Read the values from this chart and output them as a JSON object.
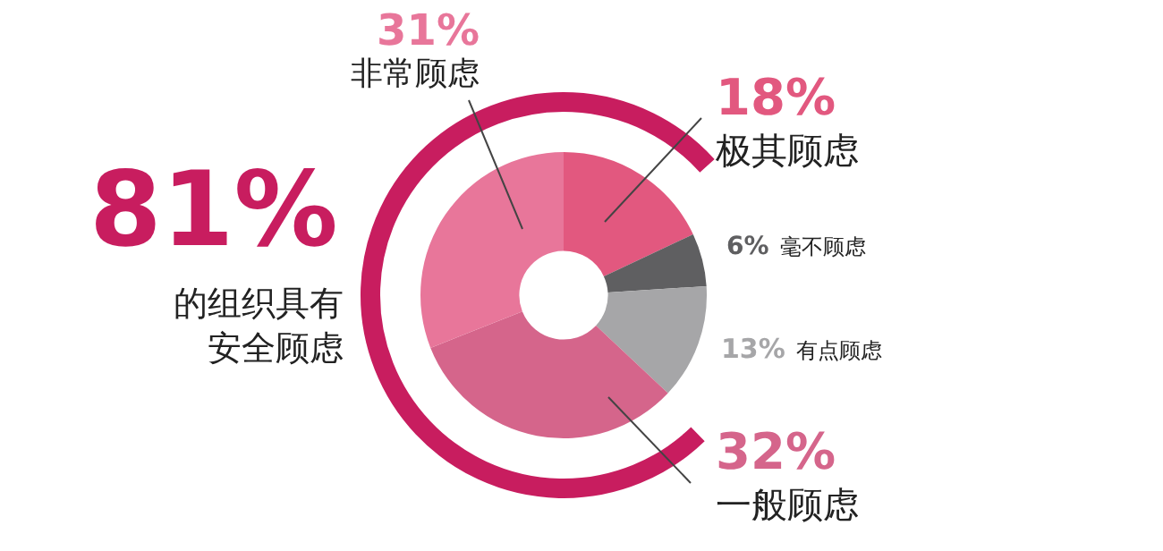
{
  "chart_data": {
    "type": "donut",
    "categories": [
      "极其顾虑",
      "毫不顾虑",
      "有点顾虑",
      "一般顾虑",
      "非常顾虑"
    ],
    "values": [
      18,
      6,
      13,
      32,
      31
    ],
    "colors": [
      "#e2587f",
      "#5f5f61",
      "#a6a6a8",
      "#d5658b",
      "#e8769a"
    ],
    "value_labels": [
      "18%",
      "6%",
      "13%",
      "32%",
      "31%"
    ],
    "annotations": [
      "81%",
      "的组织具有安全顾虑"
    ],
    "legend": false
  }
}
